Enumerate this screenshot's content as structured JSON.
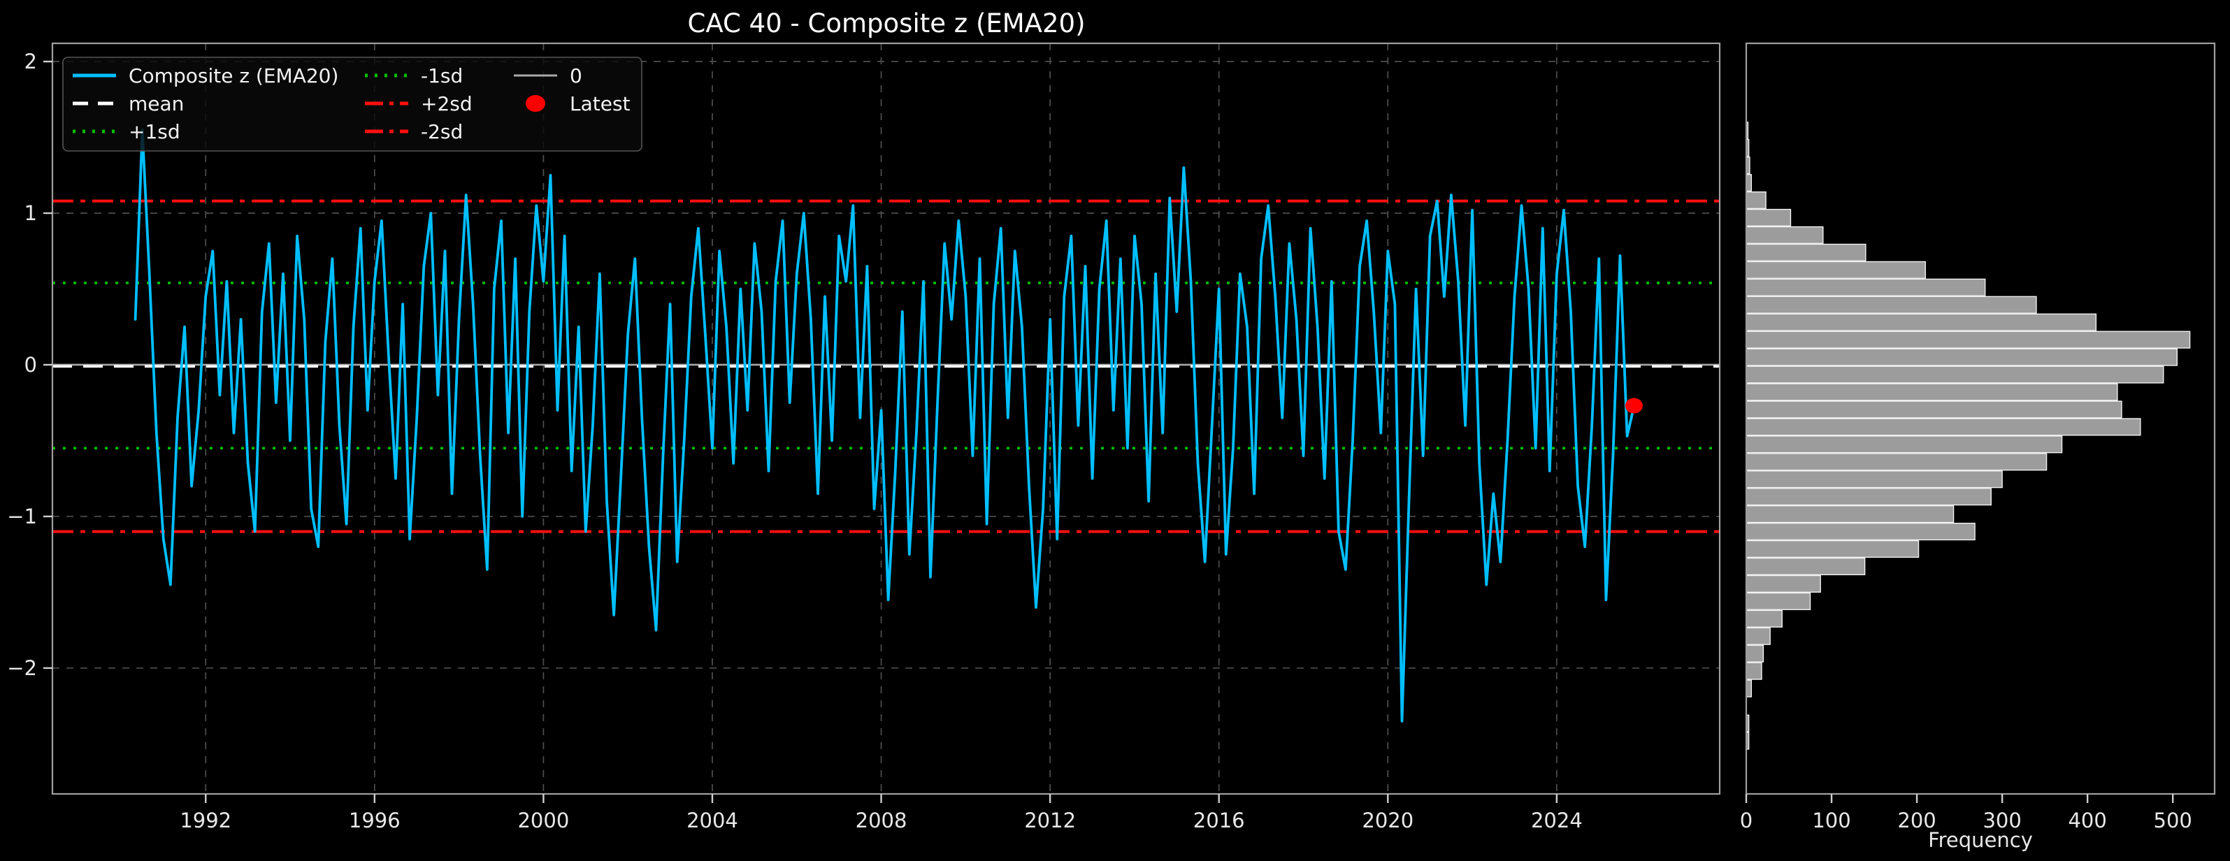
{
  "title": "CAC 40 - Composite z (EMA20)",
  "colors": {
    "background": "#000000",
    "series_line": "#00BFFF",
    "mean_line": "#FFFFFF",
    "sd1_line": "#00C000",
    "sd2_line": "#FF0F0F",
    "zero_line": "#A9A9A9",
    "latest_dot": "#FF0000",
    "hist_bar_fill": "#9C9C9C",
    "hist_bar_edge": "#F2F2F2",
    "grid": "#4F4F4F",
    "frame": "#9F9F9F",
    "tick_text": "#E8E8E8",
    "legend_bg": "#0A0A0A",
    "legend_border": "#555555"
  },
  "legend": {
    "entries": [
      {
        "label": "Composite z (EMA20)",
        "swatch": "line",
        "color": "#00BFFF",
        "dash": "",
        "col": 0,
        "row": 0
      },
      {
        "label": "mean",
        "swatch": "line",
        "color": "#FFFFFF",
        "dash": "22 14",
        "col": 0,
        "row": 1
      },
      {
        "label": "+1sd",
        "swatch": "line",
        "color": "#00C000",
        "dash": "4 10",
        "col": 0,
        "row": 2
      },
      {
        "label": "-1sd",
        "swatch": "line",
        "color": "#00C000",
        "dash": "4 10",
        "col": 1,
        "row": 0
      },
      {
        "label": "+2sd",
        "swatch": "line",
        "color": "#FF0F0F",
        "dash": "26 9 6 9",
        "col": 1,
        "row": 1
      },
      {
        "label": "-2sd",
        "swatch": "line",
        "color": "#FF0F0F",
        "dash": "26 9 6 9",
        "col": 1,
        "row": 2
      },
      {
        "label": "0",
        "swatch": "line",
        "color": "#A9A9A9",
        "dash": "",
        "col": 2,
        "row": 0
      },
      {
        "label": "Latest",
        "swatch": "marker",
        "color": "#FF0000",
        "dash": "",
        "col": 2,
        "row": 1
      }
    ]
  },
  "chart_data": [
    {
      "type": "line",
      "title": "CAC 40 - Composite z (EMA20)",
      "xlabel": "",
      "ylabel": "",
      "xlim": [
        1988.37,
        2027.86
      ],
      "ylim": [
        -2.83,
        2.12
      ],
      "x_ticks": [
        1992,
        1996,
        2000,
        2004,
        2008,
        2012,
        2016,
        2020,
        2024
      ],
      "x_tick_labels": [
        "1992",
        "1996",
        "2000",
        "2004",
        "2008",
        "2012",
        "2016",
        "2020",
        "2024"
      ],
      "y_ticks": [
        2,
        1,
        0,
        -1,
        -2
      ],
      "y_tick_labels": [
        "2",
        "1",
        "0",
        "−1",
        "−2"
      ],
      "grid": true,
      "ref_lines": {
        "mean": -0.01,
        "plus1sd": 0.54,
        "minus1sd": -0.55,
        "plus2sd": 1.08,
        "minus2sd": -1.1,
        "zero": 0.0
      },
      "series": {
        "name": "Composite z (EMA20)",
        "x_start": 1990.3333,
        "x_step": 0.16667,
        "values": [
          0.3,
          1.55,
          0.6,
          -0.45,
          -1.15,
          -1.45,
          -0.35,
          0.25,
          -0.8,
          -0.3,
          0.45,
          0.75,
          -0.2,
          0.55,
          -0.45,
          0.3,
          -0.65,
          -1.1,
          0.35,
          0.8,
          -0.25,
          0.6,
          -0.5,
          0.85,
          0.3,
          -0.95,
          -1.2,
          0.15,
          0.7,
          -0.4,
          -1.05,
          0.25,
          0.9,
          -0.3,
          0.55,
          0.95,
          0.05,
          -0.75,
          0.4,
          -1.15,
          -0.35,
          0.65,
          1.0,
          -0.2,
          0.75,
          -0.85,
          0.3,
          1.12,
          0.4,
          -0.6,
          -1.35,
          0.5,
          0.95,
          -0.45,
          0.7,
          -1.0,
          0.35,
          1.05,
          0.55,
          1.25,
          -0.3,
          0.85,
          -0.7,
          0.25,
          -1.1,
          -0.4,
          0.6,
          -0.9,
          -1.65,
          -0.75,
          0.2,
          0.7,
          -0.35,
          -1.2,
          -1.75,
          -0.6,
          0.4,
          -1.3,
          -0.5,
          0.45,
          0.9,
          0.2,
          -0.55,
          0.75,
          0.25,
          -0.65,
          0.5,
          -0.3,
          0.8,
          0.35,
          -0.7,
          0.55,
          0.95,
          -0.25,
          0.6,
          1.0,
          0.3,
          -0.85,
          0.45,
          -0.5,
          0.85,
          0.55,
          1.05,
          -0.35,
          0.65,
          -0.95,
          -0.3,
          -1.55,
          -0.7,
          0.35,
          -1.25,
          -0.45,
          0.55,
          -1.4,
          -0.25,
          0.8,
          0.3,
          0.95,
          0.45,
          -0.6,
          0.7,
          -1.05,
          0.4,
          0.9,
          -0.35,
          0.75,
          0.25,
          -0.8,
          -1.6,
          -0.95,
          0.3,
          -1.15,
          0.45,
          0.85,
          -0.4,
          0.65,
          -0.75,
          0.5,
          0.95,
          -0.3,
          0.7,
          -0.55,
          0.85,
          0.4,
          -0.9,
          0.6,
          -0.45,
          1.1,
          0.35,
          1.3,
          0.55,
          -0.65,
          -1.3,
          -0.4,
          0.5,
          -1.25,
          -0.55,
          0.6,
          0.25,
          -0.85,
          0.7,
          1.05,
          0.45,
          -0.35,
          0.8,
          0.3,
          -0.6,
          0.9,
          0.25,
          -0.75,
          0.55,
          -1.1,
          -1.35,
          -0.5,
          0.65,
          0.95,
          0.35,
          -0.45,
          0.75,
          0.4,
          -2.35,
          -0.9,
          0.5,
          -0.6,
          0.85,
          1.08,
          0.45,
          1.12,
          0.55,
          -0.4,
          1.02,
          -0.65,
          -1.45,
          -0.85,
          -1.3,
          -0.5,
          0.45,
          1.05,
          0.5,
          -0.55,
          0.9,
          -0.7,
          0.6,
          1.02,
          0.35,
          -0.8,
          -1.2,
          -0.4,
          0.7,
          -1.55,
          -0.6,
          0.72,
          -0.47,
          -0.27
        ]
      },
      "latest_point": {
        "x": 2025.83,
        "y": -0.27,
        "label": "Latest"
      }
    },
    {
      "type": "bar",
      "orientation": "horizontal",
      "xlabel": "Frequency",
      "xlim": [
        0,
        549
      ],
      "x_ticks": [
        0,
        100,
        200,
        300,
        400,
        500
      ],
      "x_tick_labels": [
        "0",
        "100",
        "200",
        "300",
        "400",
        "500"
      ],
      "bins": {
        "z_top": 1.6,
        "bin_width": 0.115,
        "freqs": [
          2,
          3,
          4,
          6,
          23,
          52,
          90,
          140,
          210,
          280,
          340,
          410,
          520,
          505,
          489,
          435,
          440,
          462,
          370,
          352,
          300,
          287,
          243,
          268,
          202,
          139,
          87,
          75,
          42,
          28,
          20,
          18,
          6,
          0,
          3,
          3
        ]
      }
    }
  ]
}
